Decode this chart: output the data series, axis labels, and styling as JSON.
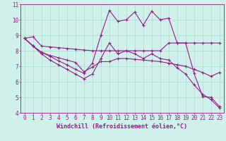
{
  "bg_color": "#cff0eb",
  "line_color": "#9b1a8a",
  "grid_color": "#aaddcc",
  "xlabel": "Windchill (Refroidissement éolien,°C)",
  "xlabel_fontsize": 6,
  "tick_fontsize": 5.5,
  "xlim": [
    -0.5,
    23.5
  ],
  "ylim": [
    4,
    11
  ],
  "yticks": [
    4,
    5,
    6,
    7,
    8,
    9,
    10,
    11
  ],
  "xticks": [
    0,
    1,
    2,
    3,
    4,
    5,
    6,
    7,
    8,
    9,
    10,
    11,
    12,
    13,
    14,
    15,
    16,
    17,
    18,
    19,
    20,
    21,
    22,
    23
  ],
  "line1_x": [
    0,
    1,
    2,
    3,
    4,
    5,
    6,
    7,
    8,
    9,
    10,
    11,
    12,
    13,
    14,
    15,
    16,
    17,
    18,
    19,
    20,
    21,
    22,
    23
  ],
  "line1_y": [
    8.8,
    8.9,
    8.3,
    8.25,
    8.2,
    8.15,
    8.1,
    8.05,
    8.0,
    8.0,
    8.0,
    8.0,
    8.0,
    8.0,
    8.0,
    8.0,
    8.0,
    8.5,
    8.5,
    8.5,
    8.5,
    8.5,
    8.5,
    8.5
  ],
  "line2_x": [
    0,
    1,
    2,
    3,
    4,
    5,
    6,
    7,
    8,
    9,
    10,
    11,
    12,
    13,
    14,
    15,
    16,
    17,
    18,
    19,
    20,
    21,
    22,
    23
  ],
  "line2_y": [
    8.8,
    8.3,
    7.9,
    7.7,
    7.55,
    7.4,
    7.25,
    6.65,
    6.95,
    7.3,
    7.3,
    7.5,
    7.5,
    7.45,
    7.4,
    7.35,
    7.3,
    7.2,
    7.1,
    7.0,
    6.8,
    6.6,
    6.35,
    6.6
  ],
  "line3_x": [
    0,
    1,
    2,
    3,
    4,
    5,
    6,
    7,
    8,
    9,
    10,
    11,
    12,
    13,
    14,
    15,
    16,
    17,
    18,
    19,
    20,
    21,
    22,
    23
  ],
  "line3_y": [
    8.8,
    8.3,
    7.9,
    7.65,
    7.35,
    7.1,
    6.8,
    6.55,
    7.2,
    9.0,
    10.6,
    9.9,
    10.0,
    10.5,
    9.65,
    10.55,
    10.0,
    10.1,
    8.5,
    8.5,
    6.55,
    5.05,
    5.0,
    4.4
  ],
  "line4_x": [
    0,
    1,
    2,
    3,
    4,
    5,
    6,
    7,
    8,
    9,
    10,
    11,
    12,
    13,
    14,
    15,
    16,
    17,
    18,
    19,
    20,
    21,
    22,
    23
  ],
  "line4_y": [
    8.8,
    8.3,
    7.8,
    7.4,
    7.1,
    6.8,
    6.5,
    6.2,
    6.5,
    7.5,
    8.5,
    7.8,
    8.0,
    7.8,
    7.5,
    7.8,
    7.5,
    7.4,
    6.9,
    6.5,
    5.8,
    5.2,
    4.85,
    4.3
  ]
}
